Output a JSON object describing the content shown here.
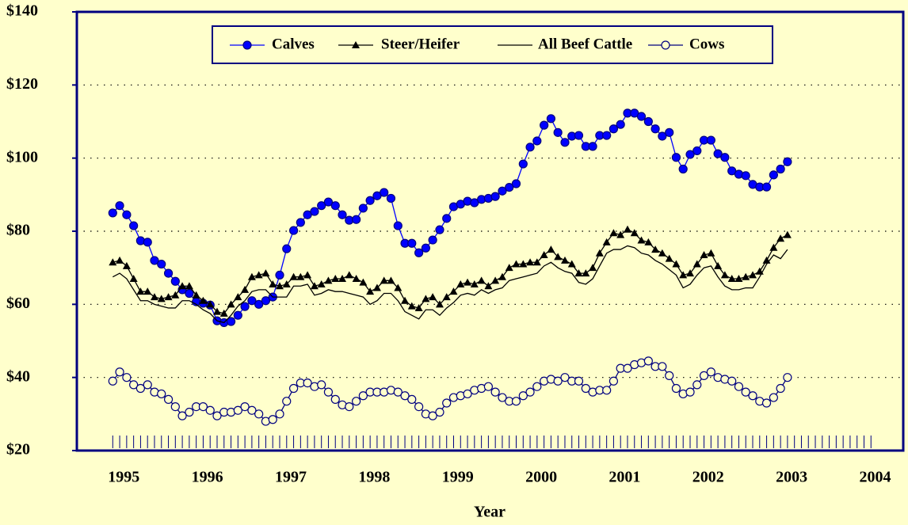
{
  "chart_data": {
    "type": "line",
    "xlabel": "Year",
    "x": [
      1995,
      1995.083,
      1995.167,
      1995.25,
      1995.333,
      1995.417,
      1995.5,
      1995.583,
      1995.667,
      1995.75,
      1995.833,
      1995.917,
      1996,
      1996.083,
      1996.167,
      1996.25,
      1996.333,
      1996.417,
      1996.5,
      1996.583,
      1996.667,
      1996.75,
      1996.833,
      1996.917,
      1997,
      1997.083,
      1997.167,
      1997.25,
      1997.333,
      1997.417,
      1997.5,
      1997.583,
      1997.667,
      1997.75,
      1997.833,
      1997.917,
      1998,
      1998.083,
      1998.167,
      1998.25,
      1998.333,
      1998.417,
      1998.5,
      1998.583,
      1998.667,
      1998.75,
      1998.833,
      1998.917,
      1999,
      1999.083,
      1999.167,
      1999.25,
      1999.333,
      1999.417,
      1999.5,
      1999.583,
      1999.667,
      1999.75,
      1999.833,
      1999.917,
      2000,
      2000.083,
      2000.167,
      2000.25,
      2000.333,
      2000.417,
      2000.5,
      2000.583,
      2000.667,
      2000.75,
      2000.833,
      2000.917,
      2001,
      2001.083,
      2001.167,
      2001.25,
      2001.333,
      2001.417,
      2001.5,
      2001.583,
      2001.667,
      2001.75,
      2001.833,
      2001.917,
      2002,
      2002.083,
      2002.167,
      2002.25,
      2002.333,
      2002.417,
      2002.5,
      2002.583,
      2002.667,
      2002.75,
      2002.833,
      2002.917,
      2003,
      2003.083
    ],
    "series": [
      {
        "name": "Calves",
        "color": "#0000ff",
        "marker": "circle",
        "values": [
          85,
          87,
          84.5,
          81.5,
          77.4,
          77,
          72,
          71,
          68.5,
          66.3,
          64,
          63,
          60.7,
          60.3,
          59.8,
          55.5,
          55,
          55.3,
          57,
          59.4,
          61,
          60,
          61,
          62,
          68,
          75.2,
          80.2,
          82.4,
          84.5,
          85.4,
          87,
          88,
          87,
          84.5,
          83,
          83.2,
          86.3,
          88.4,
          89.7,
          90.6,
          89,
          81.5,
          76.7,
          76.7,
          74.1,
          75.4,
          77.6,
          80.4,
          83.5,
          86.7,
          87.4,
          88.2,
          87.8,
          88.7,
          89,
          89.5,
          91,
          92,
          93,
          98.4,
          103,
          104.7,
          109,
          110.8,
          107,
          104.3,
          106,
          106.2,
          103.2,
          103.2,
          106.2,
          106.2,
          108,
          109.2,
          112.3,
          112.3,
          111.4,
          110,
          108,
          106,
          107,
          100.2,
          97,
          101,
          102,
          104.9,
          104.9,
          101.2,
          100.2,
          96.5,
          95.6,
          95.2,
          92.8,
          92.1,
          92.1,
          95.4,
          97,
          99
        ]
      },
      {
        "name": "Steer/Heifer",
        "color": "#000000",
        "marker": "triangle",
        "values": [
          71.5,
          72,
          70.5,
          67,
          63.5,
          63.5,
          62,
          61.5,
          62,
          62.5,
          65,
          65,
          62.5,
          61,
          60,
          58,
          57.5,
          60,
          62,
          64,
          67.5,
          68,
          68.5,
          65.5,
          65,
          65.5,
          67.5,
          67.5,
          68,
          65,
          65.5,
          66.5,
          67,
          67,
          68,
          67,
          66,
          63.5,
          64.5,
          66.5,
          66.5,
          64.5,
          61,
          59.5,
          59,
          61.5,
          62,
          60,
          62,
          63.5,
          65.5,
          66,
          65.5,
          66.5,
          65,
          66.5,
          67.5,
          70,
          71,
          71,
          71.5,
          71.5,
          73.5,
          75,
          73,
          72,
          71,
          68.5,
          68.5,
          70,
          74,
          77,
          79.5,
          79,
          80.5,
          79.5,
          77.5,
          77,
          75,
          74,
          72.5,
          71,
          68,
          68.5,
          71,
          73.5,
          74,
          70.5,
          68,
          67,
          67,
          67.5,
          68,
          69,
          72,
          75.5,
          78,
          79
        ]
      },
      {
        "name": "All Beef Cattle",
        "color": "#000000",
        "marker": "none",
        "values": [
          67.5,
          68.5,
          67,
          64,
          61,
          61,
          60,
          59.5,
          59,
          59,
          61,
          61,
          60,
          58.5,
          57.5,
          55.5,
          55,
          57,
          59.5,
          61,
          63.5,
          64,
          64,
          62,
          62,
          62,
          65,
          65,
          65.5,
          62.5,
          63,
          64,
          63.5,
          63.5,
          63,
          62.5,
          62,
          60,
          61,
          63,
          63,
          61,
          58,
          57,
          56,
          58.5,
          58.5,
          57,
          59,
          60.5,
          62.5,
          63,
          62.5,
          64,
          63,
          64,
          64.5,
          66.5,
          67,
          67.5,
          68,
          68.5,
          70.5,
          71.5,
          70,
          69,
          68.5,
          66,
          65.5,
          67,
          70.5,
          74,
          75,
          75,
          76,
          75.5,
          74,
          73.5,
          72,
          71,
          69.5,
          68,
          64.5,
          65.5,
          68,
          70,
          70.5,
          67.5,
          65,
          64,
          64,
          64.5,
          64.5,
          67.5,
          71,
          73.5,
          72.5,
          75
        ]
      },
      {
        "name": "Cows",
        "color": "#000080",
        "marker": "open-circle",
        "values": [
          39,
          41.5,
          40,
          38,
          37,
          38,
          36,
          35.5,
          34,
          32,
          29.5,
          30.5,
          32,
          32,
          31,
          29.5,
          30.5,
          30.5,
          31,
          32,
          31,
          30,
          28,
          28.5,
          30,
          33.5,
          37,
          38.5,
          38.5,
          37.5,
          38,
          36,
          34,
          32.5,
          32,
          33.5,
          35,
          36,
          36,
          36,
          36.5,
          36,
          35,
          34,
          32,
          30,
          29.5,
          30.5,
          33,
          34.5,
          35,
          35.5,
          36.5,
          37,
          37.5,
          36,
          34.5,
          33.5,
          33.5,
          35,
          36,
          37.5,
          39,
          39.5,
          39,
          40,
          39,
          39,
          37,
          36,
          36.5,
          36.5,
          39,
          42.5,
          42.5,
          43.5,
          44,
          44.5,
          43,
          43,
          40.5,
          37,
          35.5,
          36,
          38,
          40.5,
          41.5,
          40,
          39.5,
          39,
          37.5,
          36,
          35,
          33.5,
          33,
          34.5,
          37,
          40
        ]
      }
    ],
    "xlim": [
      1994.57,
      2004.47
    ],
    "xticks": [
      1995,
      1996,
      1997,
      1998,
      1999,
      2000,
      2001,
      2002,
      2003,
      2004
    ],
    "ylim": [
      20,
      140
    ],
    "yticks": [
      {
        "value": 20,
        "label": "$20"
      },
      {
        "value": 40,
        "label": "$40"
      },
      {
        "value": 60,
        "label": "$60"
      },
      {
        "value": 80,
        "label": "$80"
      },
      {
        "value": 100,
        "label": "$100"
      },
      {
        "value": 120,
        "label": "$120"
      },
      {
        "value": 140,
        "label": "$140"
      }
    ],
    "grid": true,
    "legend": "top"
  }
}
